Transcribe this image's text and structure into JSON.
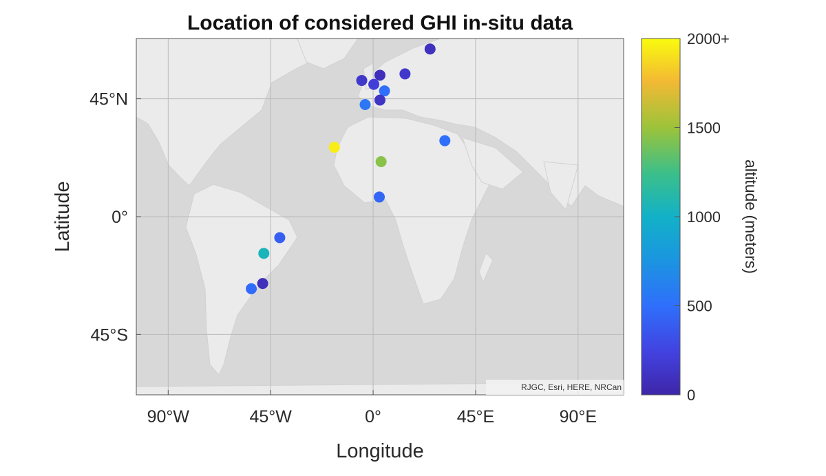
{
  "chart_data": {
    "type": "scatter",
    "title": "Location of considered GHI in-situ data",
    "xlabel": "Longitude",
    "ylabel": "Latitude",
    "xlim": [
      -104,
      110
    ],
    "ylim": [
      -68,
      68
    ],
    "x_ticks": [
      {
        "value": -90,
        "label": "90°W"
      },
      {
        "value": -45,
        "label": "45°W"
      },
      {
        "value": 0,
        "label": "0°"
      },
      {
        "value": 45,
        "label": "45°E"
      },
      {
        "value": 90,
        "label": "90°E"
      }
    ],
    "y_ticks": [
      {
        "value": 45,
        "label": "45°N"
      },
      {
        "value": 0,
        "label": "0°"
      },
      {
        "value": -45,
        "label": "45°S"
      }
    ],
    "grid": true,
    "basemap": "world-light-gray-canvas",
    "attribution": "RJGC, Esri, HERE, NRCan",
    "colorbar": {
      "label": "altitude (meters)",
      "min": 0,
      "max": 2000,
      "ticks": [
        {
          "value": 0,
          "label": "0"
        },
        {
          "value": 500,
          "label": "500"
        },
        {
          "value": 1000,
          "label": "1000"
        },
        {
          "value": 1500,
          "label": "1500"
        },
        {
          "value": 2000,
          "label": "2000+"
        }
      ],
      "colormap": "parula"
    },
    "points": [
      {
        "lon": 25,
        "lat": 64,
        "alt": 100
      },
      {
        "lon": 14,
        "lat": 54.5,
        "alt": 150
      },
      {
        "lon": 3,
        "lat": 54,
        "alt": 80
      },
      {
        "lon": -5,
        "lat": 52,
        "alt": 150
      },
      {
        "lon": 0.3,
        "lat": 50.5,
        "alt": 200
      },
      {
        "lon": 5,
        "lat": 48,
        "alt": 500
      },
      {
        "lon": 3,
        "lat": 44.5,
        "alt": 120
      },
      {
        "lon": -3.5,
        "lat": 42.8,
        "alt": 550
      },
      {
        "lon": -17,
        "lat": 26.5,
        "alt": 1950
      },
      {
        "lon": 31.5,
        "lat": 29,
        "alt": 500
      },
      {
        "lon": 3.5,
        "lat": 21,
        "alt": 1450
      },
      {
        "lon": 2.7,
        "lat": 7.5,
        "alt": 450
      },
      {
        "lon": -41,
        "lat": -8,
        "alt": 400
      },
      {
        "lon": -48,
        "lat": -14,
        "alt": 1050
      },
      {
        "lon": -48.5,
        "lat": -25.5,
        "alt": 80
      },
      {
        "lon": -53.5,
        "lat": -27.5,
        "alt": 480
      }
    ]
  }
}
